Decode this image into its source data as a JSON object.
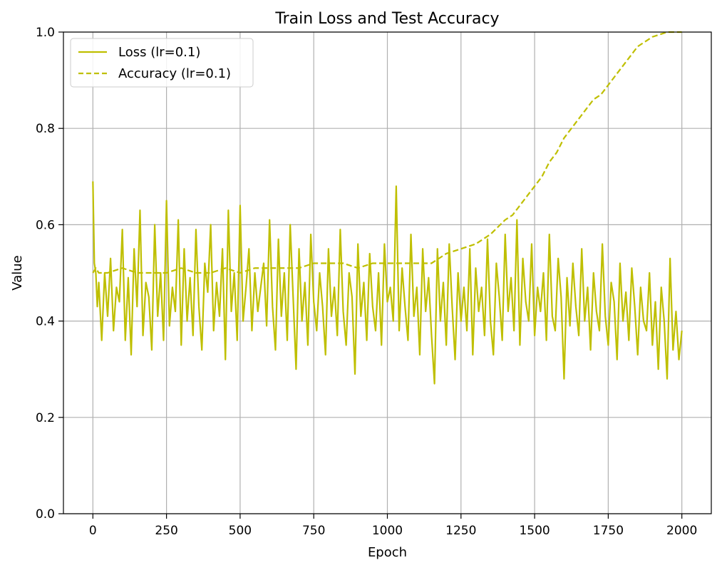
{
  "chart_data": {
    "type": "line",
    "title": "Train Loss and Test Accuracy",
    "xlabel": "Epoch",
    "ylabel": "Value",
    "xlim": [
      -100,
      2100
    ],
    "ylim": [
      0.0,
      1.0
    ],
    "xticks": [
      0,
      250,
      500,
      750,
      1000,
      1250,
      1500,
      1750,
      2000
    ],
    "yticks": [
      0.0,
      0.2,
      0.4,
      0.6,
      0.8,
      1.0
    ],
    "xtick_labels": [
      "0",
      "250",
      "500",
      "750",
      "1000",
      "1250",
      "1500",
      "1750",
      "2000"
    ],
    "ytick_labels": [
      "0.0",
      "0.2",
      "0.4",
      "0.6",
      "0.8",
      "1.0"
    ],
    "grid": true,
    "legend_position": "top-left",
    "colors": {
      "series": "#bfbf00",
      "grid": "#b0b0b0",
      "axis": "#000000"
    },
    "series": [
      {
        "name": "Loss (lr=0.1)",
        "style": "solid",
        "x": [
          0,
          5,
          10,
          15,
          20,
          30,
          40,
          50,
          60,
          70,
          80,
          90,
          100,
          110,
          120,
          130,
          140,
          150,
          160,
          170,
          180,
          190,
          200,
          210,
          220,
          230,
          240,
          250,
          260,
          270,
          280,
          290,
          300,
          310,
          320,
          330,
          340,
          350,
          360,
          370,
          380,
          390,
          400,
          410,
          420,
          430,
          440,
          450,
          460,
          470,
          480,
          490,
          500,
          510,
          520,
          530,
          540,
          550,
          560,
          570,
          580,
          590,
          600,
          610,
          620,
          630,
          640,
          650,
          660,
          670,
          680,
          690,
          700,
          710,
          720,
          730,
          740,
          750,
          760,
          770,
          780,
          790,
          800,
          810,
          820,
          830,
          840,
          850,
          860,
          870,
          880,
          890,
          900,
          910,
          920,
          930,
          940,
          950,
          960,
          970,
          980,
          990,
          1000,
          1010,
          1020,
          1030,
          1040,
          1050,
          1060,
          1070,
          1080,
          1090,
          1100,
          1110,
          1120,
          1130,
          1140,
          1150,
          1160,
          1170,
          1180,
          1190,
          1200,
          1210,
          1220,
          1230,
          1240,
          1250,
          1260,
          1270,
          1280,
          1290,
          1300,
          1310,
          1320,
          1330,
          1340,
          1350,
          1360,
          1370,
          1380,
          1390,
          1400,
          1410,
          1420,
          1430,
          1440,
          1450,
          1460,
          1470,
          1480,
          1490,
          1500,
          1510,
          1520,
          1530,
          1540,
          1550,
          1560,
          1570,
          1580,
          1590,
          1600,
          1610,
          1620,
          1630,
          1640,
          1650,
          1660,
          1670,
          1680,
          1690,
          1700,
          1710,
          1720,
          1730,
          1740,
          1750,
          1760,
          1770,
          1780,
          1790,
          1800,
          1810,
          1820,
          1830,
          1840,
          1850,
          1860,
          1870,
          1880,
          1890,
          1900,
          1910,
          1920,
          1930,
          1940,
          1950,
          1960,
          1970,
          1980,
          1990,
          2000
        ],
        "values": [
          0.69,
          0.52,
          0.5,
          0.43,
          0.48,
          0.36,
          0.5,
          0.41,
          0.53,
          0.38,
          0.47,
          0.44,
          0.59,
          0.36,
          0.49,
          0.33,
          0.55,
          0.43,
          0.63,
          0.37,
          0.48,
          0.45,
          0.34,
          0.6,
          0.41,
          0.5,
          0.36,
          0.65,
          0.39,
          0.47,
          0.42,
          0.61,
          0.35,
          0.55,
          0.4,
          0.49,
          0.37,
          0.59,
          0.43,
          0.34,
          0.52,
          0.46,
          0.6,
          0.38,
          0.48,
          0.41,
          0.55,
          0.32,
          0.63,
          0.42,
          0.5,
          0.36,
          0.64,
          0.4,
          0.47,
          0.55,
          0.38,
          0.5,
          0.42,
          0.47,
          0.52,
          0.39,
          0.61,
          0.43,
          0.34,
          0.57,
          0.41,
          0.5,
          0.36,
          0.6,
          0.45,
          0.3,
          0.55,
          0.4,
          0.48,
          0.35,
          0.58,
          0.44,
          0.38,
          0.5,
          0.43,
          0.33,
          0.55,
          0.41,
          0.47,
          0.37,
          0.59,
          0.42,
          0.35,
          0.5,
          0.45,
          0.29,
          0.56,
          0.41,
          0.48,
          0.36,
          0.54,
          0.43,
          0.38,
          0.5,
          0.35,
          0.56,
          0.44,
          0.47,
          0.4,
          0.68,
          0.38,
          0.51,
          0.43,
          0.36,
          0.58,
          0.41,
          0.47,
          0.33,
          0.55,
          0.42,
          0.49,
          0.37,
          0.27,
          0.55,
          0.4,
          0.48,
          0.35,
          0.56,
          0.43,
          0.32,
          0.5,
          0.4,
          0.47,
          0.38,
          0.55,
          0.33,
          0.51,
          0.42,
          0.47,
          0.37,
          0.57,
          0.4,
          0.33,
          0.52,
          0.45,
          0.36,
          0.58,
          0.42,
          0.49,
          0.38,
          0.61,
          0.35,
          0.53,
          0.44,
          0.4,
          0.56,
          0.37,
          0.47,
          0.42,
          0.5,
          0.36,
          0.58,
          0.41,
          0.38,
          0.53,
          0.45,
          0.28,
          0.49,
          0.39,
          0.52,
          0.43,
          0.37,
          0.55,
          0.4,
          0.47,
          0.34,
          0.5,
          0.42,
          0.38,
          0.56,
          0.41,
          0.35,
          0.48,
          0.44,
          0.32,
          0.52,
          0.4,
          0.46,
          0.36,
          0.51,
          0.43,
          0.33,
          0.47,
          0.4,
          0.38,
          0.5,
          0.35,
          0.44,
          0.3,
          0.47,
          0.4,
          0.28,
          0.53,
          0.34,
          0.42,
          0.32,
          0.38
        ]
      },
      {
        "name": "Accuracy (lr=0.1)",
        "style": "dashed",
        "x": [
          0,
          10,
          20,
          50,
          100,
          150,
          200,
          250,
          300,
          350,
          400,
          450,
          500,
          550,
          600,
          650,
          700,
          750,
          800,
          850,
          900,
          950,
          1000,
          1050,
          1100,
          1150,
          1200,
          1250,
          1300,
          1350,
          1400,
          1425,
          1450,
          1475,
          1500,
          1525,
          1550,
          1575,
          1600,
          1625,
          1650,
          1675,
          1700,
          1725,
          1750,
          1775,
          1800,
          1825,
          1850,
          1875,
          1900,
          1925,
          1950,
          2000
        ],
        "values": [
          0.5,
          0.51,
          0.5,
          0.5,
          0.51,
          0.5,
          0.5,
          0.5,
          0.51,
          0.5,
          0.5,
          0.51,
          0.5,
          0.51,
          0.51,
          0.51,
          0.51,
          0.52,
          0.52,
          0.52,
          0.51,
          0.52,
          0.52,
          0.52,
          0.52,
          0.52,
          0.54,
          0.55,
          0.56,
          0.58,
          0.61,
          0.62,
          0.64,
          0.66,
          0.68,
          0.7,
          0.73,
          0.75,
          0.78,
          0.8,
          0.82,
          0.84,
          0.86,
          0.87,
          0.89,
          0.91,
          0.93,
          0.95,
          0.97,
          0.98,
          0.99,
          0.995,
          1.0,
          1.0
        ]
      }
    ]
  }
}
